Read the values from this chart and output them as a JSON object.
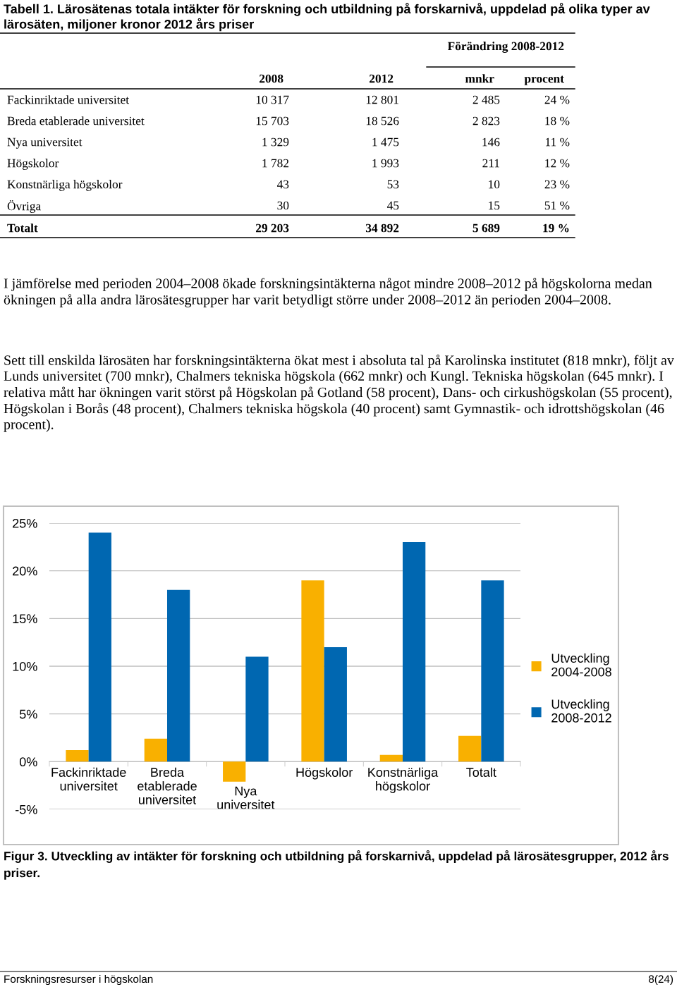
{
  "chart_data": [
    {
      "type": "other",
      "title": "Tabell 1. Lärosätenas totala intäkter för forskning och utbildning på forskarnivå, uppdelad på olika typer av lärosäten, miljoner kronor 2012 års priser",
      "annotations": [
        "Förändring 2008-2012",
        "\t2008\t2012\tmnkr\tprocent",
        "Fackinriktade universitet\t10 317\t12 801\t2 485\t24 %",
        "Breda etablerade universitet\t15 703\t18 526\t2 823\t18 %",
        "Nya universitet\t1 329\t1 475\t146\t11 %",
        "Högskolor\t1 782\t1 993\t211\t12 %",
        "Konstnärliga högskolor\t43\t53\t10\t23 %",
        "Övriga\t30\t45\t15\t51 %",
        "Totalt\t29 203\t34 892\t5 689\t19 %",
        "I jämförelse med perioden 2004–2008 ökade forskningsintäkterna något mindre 2008–2012 på högskolorna medan ökningen på alla andra lärosätesgrupper har varit betydligt större under 2008–2012 än perioden 2004–2008.",
        "Sett till enskilda lärosäten har forskningsintäkterna ökat mest i absoluta tal på Karolinska institutet (818 mnkr), följt av Lunds universitet (700 mnkr), Chalmers tekniska högskola (662 mnkr) och Kungl. Tekniska högskolan (645 mnkr). I relativa mått har ökningen varit störst på Högskolan på Gotland (58 procent), Dans- och cirkushögskolan (55 procent), Högskolan i Borås (48 procent), Chalmers tekniska högskola (40 procent) samt Gymnastik- och idrottshögskolan (46 procent)."
      ]
    },
    {
      "type": "bar",
      "categories": [
        "Fackinriktade\nuniversitet",
        "Breda\netablerade\nuniversitet",
        "Nya\nuniversitet",
        "Högskolor",
        "Konstnärliga\nhögskolor",
        "Totalt"
      ],
      "series": [
        {
          "name": "Utveckling\n2004-2008",
          "color": "#f9b000",
          "values": [
            1.2,
            2.4,
            -2.1,
            19.0,
            0.7,
            2.7
          ]
        },
        {
          "name": "Utveckling\n2008-2012",
          "color": "#0067b1",
          "values": [
            24,
            18,
            11,
            12,
            23,
            19
          ]
        }
      ],
      "ylim": [
        -5,
        25
      ],
      "yticks": [
        {
          "value": -5,
          "label": "-5%"
        },
        {
          "value": 0,
          "label": "0%"
        },
        {
          "value": 5,
          "label": "5%"
        },
        {
          "value": 10,
          "label": "10%"
        },
        {
          "value": 15,
          "label": "15%"
        },
        {
          "value": 20,
          "label": "20%"
        },
        {
          "value": 25,
          "label": "25%"
        }
      ],
      "grid": "y",
      "legend": "right",
      "annotations": [
        "Figur 3. Utveckling av intäkter för forskning och utbildning på forskarnivå, uppdelad på lärosätesgrupper, 2012 års priser.",
        "Forskningsresurser i högskolan",
        "8(24)"
      ]
    }
  ]
}
